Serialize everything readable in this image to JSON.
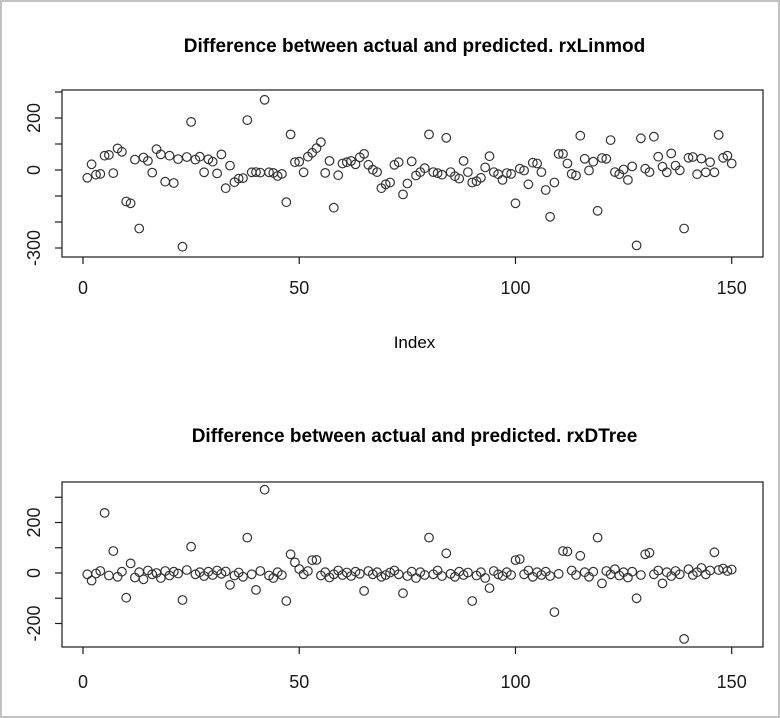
{
  "frame": {
    "bg_color": "#ffffff",
    "border_color": "#c2c2c2",
    "axis_color": "#1a1a1a",
    "point_color": "#333333"
  },
  "chart_data": [
    {
      "type": "scatter",
      "title": "Difference between actual and predicted. rxLinmod",
      "xlabel": "Index",
      "ylabel": "",
      "marker": "open-circle",
      "x_description": "index 1..150",
      "xlim": [
        -5,
        157
      ],
      "ylim": [
        -335,
        308
      ],
      "grid": false,
      "xticks": [
        0,
        50,
        100,
        150
      ],
      "xtick_labels": [
        "0",
        "50",
        "100",
        "150"
      ],
      "yticks": [
        300,
        200,
        100,
        0,
        -100,
        -200,
        -300
      ],
      "ytick_labels": [
        "",
        "200",
        "",
        "0",
        "",
        "",
        "-300"
      ],
      "values": [
        -30,
        22,
        -18,
        -15,
        55,
        58,
        -12,
        83,
        70,
        -121,
        -128,
        40,
        -225,
        48,
        35,
        -10,
        80,
        60,
        -45,
        55,
        -50,
        42,
        -295,
        50,
        185,
        40,
        51,
        -9,
        41,
        32,
        -13,
        60,
        -70,
        17,
        -47,
        -33,
        -31,
        192,
        -9,
        -8,
        -10,
        270,
        -9,
        -11,
        -23,
        -15,
        -124,
        137,
        30,
        32,
        -9,
        51,
        66,
        84,
        107,
        -11,
        35,
        -145,
        -20,
        25,
        30,
        35,
        22,
        49,
        62,
        20,
        1,
        -8,
        -70,
        -55,
        -48,
        20,
        30,
        -94,
        -52,
        33,
        -21,
        -8,
        7,
        137,
        -8,
        -12,
        -18,
        124,
        -8,
        -24,
        -33,
        35,
        -8,
        -48,
        -43,
        -30,
        10,
        53,
        -8,
        -16,
        -38,
        -12,
        -15,
        -128,
        5,
        -2,
        -55,
        28,
        25,
        -8,
        -77,
        -180,
        -48,
        62,
        62,
        25,
        -15,
        -21,
        132,
        43,
        -2,
        32,
        -157,
        46,
        43,
        115,
        -8,
        -16,
        2,
        -38,
        14,
        -290,
        122,
        5,
        -8,
        128,
        51,
        13,
        -9,
        64,
        17,
        -1,
        -225,
        47,
        50,
        -16,
        44,
        -9,
        30,
        -9,
        135,
        47,
        55,
        25
      ]
    },
    {
      "type": "scatter",
      "title": "Difference between actual and predicted. rxDTree",
      "xlabel": "",
      "ylabel": "",
      "marker": "open-circle",
      "x_description": "index 1..150",
      "xlim": [
        -5,
        157
      ],
      "ylim": [
        -293,
        361
      ],
      "grid": false,
      "xticks": [
        0,
        50,
        100,
        150
      ],
      "xtick_labels": [
        "0",
        "50",
        "100",
        "150"
      ],
      "yticks": [
        300,
        200,
        100,
        0,
        -100,
        -200
      ],
      "ytick_labels": [
        "",
        "200",
        "",
        "0",
        "",
        "-200"
      ],
      "values": [
        -5,
        -30,
        -2,
        8,
        238,
        -10,
        87,
        -15,
        5,
        -98,
        38,
        -18,
        3,
        -25,
        10,
        -5,
        0,
        -20,
        8,
        -10,
        5,
        -2,
        -107,
        12,
        104,
        -5,
        3,
        -12,
        5,
        -8,
        10,
        -3,
        6,
        -47,
        -10,
        2,
        -15,
        140,
        -5,
        -67,
        8,
        330,
        -10,
        -20,
        3,
        -8,
        -111,
        74,
        42,
        16,
        -5,
        8,
        51,
        52,
        -10,
        3,
        -18,
        -5,
        10,
        -8,
        2,
        -12,
        5,
        -3,
        -71,
        8,
        -5,
        3,
        -15,
        -8,
        2,
        10,
        -5,
        -80,
        -12,
        5,
        -20,
        3,
        -8,
        140,
        -5,
        10,
        -12,
        78,
        -3,
        -15,
        5,
        -8,
        2,
        -111,
        -10,
        3,
        -20,
        -60,
        8,
        -5,
        -12,
        3,
        -8,
        51,
        55,
        -5,
        10,
        -15,
        3,
        -8,
        5,
        -12,
        -155,
        -3,
        87,
        85,
        10,
        -8,
        68,
        3,
        -15,
        5,
        140,
        -41,
        8,
        -5,
        15,
        -10,
        3,
        -18,
        5,
        -100,
        -8,
        74,
        80,
        -5,
        10,
        -41,
        3,
        -12,
        8,
        -5,
        -261,
        15,
        -8,
        3,
        20,
        -5,
        10,
        82,
        12,
        18,
        8,
        14
      ]
    }
  ]
}
